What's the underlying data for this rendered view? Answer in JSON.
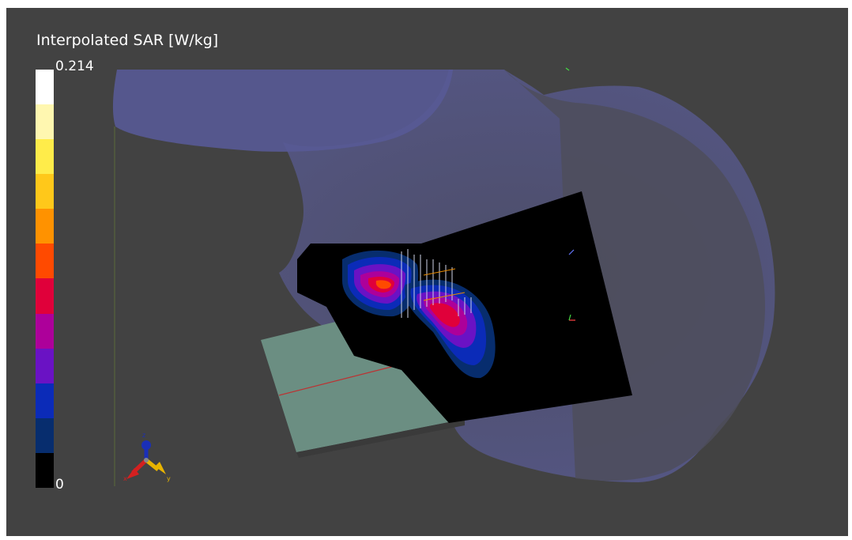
{
  "legend": {
    "title": "Interpolated SAR [W/kg]",
    "max_label": "0.214",
    "min_label": "0",
    "colors": [
      "#ffffff",
      "#fff7b0",
      "#ffec4a",
      "#ffc81a",
      "#ff9200",
      "#ff4a00",
      "#e0003a",
      "#ad009a",
      "#6a12c4",
      "#0b2bb8",
      "#072d6e",
      "#000000"
    ]
  },
  "axes_gizmo": {
    "x_label": "x",
    "y_label": "y",
    "z_label": "z",
    "x_color": "#d42020",
    "y_color": "#e8b400",
    "z_color": "#1a2fb8"
  },
  "scene": {
    "background": "#424242",
    "phantom_color": "#5b5d9a",
    "pcb_color": "#6b8e82",
    "sar_plane_color": "#000000"
  }
}
